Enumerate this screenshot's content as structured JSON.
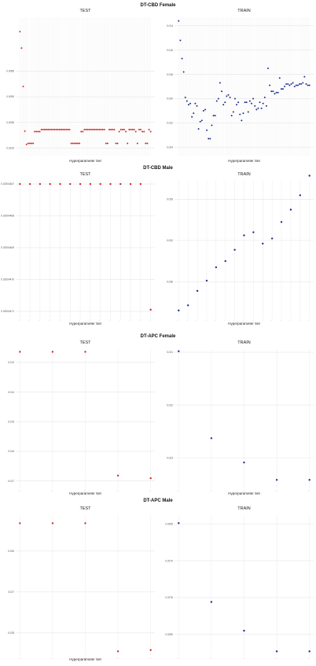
{
  "figure": {
    "sections": [
      {
        "title": "DT-CBD Female",
        "panels": [
          {
            "subtitle": "TEST",
            "xlabel": "Hyperparameter Set",
            "color": "#d62728",
            "yticks": [
              "0.0100",
              "0.0095",
              "0.0090",
              "0.0085"
            ],
            "chart_data": {
              "type": "scatter",
              "ylim": [
                0.00835,
                0.01105
              ],
              "grid": true,
              "yticks": [
                0.0085,
                0.009,
                0.0095,
                0.01
              ],
              "x": [
                1,
                2,
                3,
                4,
                5,
                6,
                7,
                8,
                9,
                10,
                11,
                12,
                13,
                14,
                15,
                16,
                17,
                18,
                19,
                20,
                21,
                22,
                23,
                24,
                25,
                26,
                27,
                28,
                29,
                30,
                31,
                32,
                33,
                34,
                35,
                36,
                37,
                38,
                39,
                40,
                41,
                42,
                43,
                44,
                45,
                46,
                47,
                48,
                49,
                50,
                51,
                52,
                53,
                54,
                55,
                56,
                57,
                58,
                59,
                60,
                61,
                62,
                63,
                64,
                65,
                66,
                67,
                68,
                69,
                70,
                71,
                72,
                73,
                74,
                75,
                76,
                77,
                78,
                79,
                80
              ],
              "y": [
                0.01077,
                0.01045,
                0.0097,
                0.00883,
                0.00857,
                0.00859,
                0.00859,
                0.00859,
                0.00859,
                0.00882,
                0.00882,
                0.00882,
                0.00882,
                0.00886,
                0.00886,
                0.00886,
                0.00886,
                0.00886,
                0.00886,
                0.00886,
                0.00886,
                0.00886,
                0.00886,
                0.00886,
                0.00886,
                0.00886,
                0.00886,
                0.00886,
                0.00886,
                0.00886,
                0.00886,
                0.00859,
                0.00859,
                0.00859,
                0.00859,
                0.00859,
                0.00859,
                0.00882,
                0.00882,
                0.00886,
                0.00886,
                0.00886,
                0.00886,
                0.00886,
                0.00886,
                0.00886,
                0.00886,
                0.00886,
                0.00886,
                0.00886,
                0.00886,
                0.00886,
                0.00859,
                0.00859,
                0.00886,
                0.00886,
                0.00886,
                0.00886,
                0.00859,
                0.00859,
                0.00882,
                0.00886,
                0.00886,
                0.00886,
                0.00882,
                0.00859,
                0.00886,
                0.00886,
                0.00886,
                0.00886,
                0.00882,
                0.00859,
                0.00886,
                0.00886,
                0.00882,
                0.00882,
                0.00859,
                0.00859,
                0.00886,
                0.00882
              ]
            }
          },
          {
            "subtitle": "TRAIN",
            "xlabel": "Hyperparameter Set",
            "color": "#1f2f8f",
            "yticks": [
              "0.024",
              "0.022",
              "0.020",
              "0.018",
              "0.016",
              "0.014"
            ],
            "chart_data": {
              "type": "scatter",
              "ylim": [
                0.0133,
                0.0247
              ],
              "grid": true,
              "yticks": [
                0.014,
                0.016,
                0.018,
                0.02,
                0.022,
                0.024
              ],
              "x": [
                1,
                2,
                3,
                4,
                5,
                6,
                7,
                8,
                9,
                10,
                11,
                12,
                13,
                14,
                15,
                16,
                17,
                18,
                19,
                20,
                21,
                22,
                23,
                24,
                25,
                26,
                27,
                28,
                29,
                30,
                31,
                32,
                33,
                34,
                35,
                36,
                37,
                38,
                39,
                40,
                41,
                42,
                43,
                44,
                45,
                46,
                47,
                48,
                49,
                50,
                51,
                52,
                53,
                54,
                55,
                56,
                57,
                58,
                59,
                60,
                61,
                62,
                63,
                64,
                65,
                66,
                67,
                68,
                69,
                70,
                71,
                72,
                73,
                74,
                75,
                76,
                77,
                78,
                79,
                80
              ],
              "y": [
                0.0244,
                0.0228,
                0.0213,
                0.0202,
                0.0181,
                0.0178,
                0.0175,
                0.0176,
                0.0165,
                0.0168,
                0.0176,
                0.0174,
                0.0155,
                0.0161,
                0.0162,
                0.017,
                0.0171,
                0.0154,
                0.0147,
                0.0147,
                0.0158,
                0.0166,
                0.0166,
                0.0178,
                0.018,
                0.0193,
                0.0186,
                0.0175,
                0.0177,
                0.0182,
                0.0183,
                0.0181,
                0.0166,
                0.0169,
                0.018,
                0.0175,
                0.0177,
                0.0167,
                0.0162,
                0.0168,
                0.0177,
                0.0177,
                0.0169,
                0.0178,
                0.0176,
                0.018,
                0.0174,
                0.0171,
                0.0172,
                0.0177,
                0.0172,
                0.0176,
                0.0181,
                0.0174,
                0.0205,
                0.0191,
                0.0186,
                0.0186,
                0.0184,
                0.0185,
                0.0185,
                0.0197,
                0.0188,
                0.0188,
                0.019,
                0.0192,
                0.0192,
                0.0191,
                0.0192,
                0.0193,
                0.019,
                0.0191,
                0.0191,
                0.0192,
                0.0192,
                0.0193,
                0.0198,
                0.0192,
                0.0191,
                0.0191
              ]
            }
          }
        ]
      },
      {
        "title": "DT-CBD Male",
        "panels": [
          {
            "subtitle": "TEST",
            "xlabel": "Hyperparameter Set",
            "color": "#d62728",
            "yticks": [
              "0.02004471",
              "0.02004470",
              "0.02004469",
              "0.02004468",
              "0.02004467"
            ],
            "chart_data": {
              "type": "scatter",
              "ylim": [
                0.020044668,
                0.020044711
              ],
              "grid": true,
              "yticks": [
                0.02004467,
                0.02004468,
                0.02004469,
                0.0200447,
                0.02004471
              ],
              "x": [
                1,
                2,
                3,
                4,
                5,
                6,
                7,
                8,
                9,
                10,
                11,
                12,
                13,
                14
              ],
              "y": [
                0.02004471,
                0.02004471,
                0.02004471,
                0.02004471,
                0.02004471,
                0.02004471,
                0.02004471,
                0.02004471,
                0.02004471,
                0.02004471,
                0.02004471,
                0.02004471,
                0.02004471,
                0.0200446705
              ]
            }
          },
          {
            "subtitle": "TRAIN",
            "xlabel": "Hyperparameter Set",
            "color": "#1f2f8f",
            "yticks": [
              "0.036",
              "0.032",
              "0.028"
            ],
            "chart_data": {
              "type": "scatter",
              "ylim": [
                0.0245,
                0.0378
              ],
              "grid": true,
              "yticks": [
                0.028,
                0.032,
                0.036
              ],
              "x": [
                1,
                2,
                3,
                4,
                5,
                6,
                7,
                8,
                9,
                10,
                11,
                12,
                13,
                14,
                15
              ],
              "y": [
                0.0252,
                0.0257,
                0.0271,
                0.0281,
                0.0294,
                0.03,
                0.0311,
                0.0325,
                0.0328,
                0.0317,
                0.0322,
                0.0338,
                0.035,
                0.0364,
                0.0383
              ]
            }
          }
        ]
      },
      {
        "title": "DT-APC Female",
        "panels": [
          {
            "subtitle": "TEST",
            "xlabel": "Hyperparameter Set",
            "color": "#d62728",
            "yticks": [
              "0.017",
              "0.016",
              "0.015",
              "0.014",
              "0.013"
            ],
            "chart_data": {
              "type": "scatter",
              "ylim": [
                0.01275,
                0.01745
              ],
              "grid": true,
              "yticks": [
                0.013,
                0.014,
                0.015,
                0.016,
                0.017
              ],
              "x": [
                1,
                2,
                3,
                4,
                5
              ],
              "y": [
                0.01736,
                0.01736,
                0.01736,
                0.01318,
                0.01309
              ]
            }
          },
          {
            "subtitle": "TRAIN",
            "xlabel": "Hyperparameter Set",
            "color": "#1f2f8f",
            "yticks": [
              "0.023",
              "0.022",
              "0.021"
            ],
            "chart_data": {
              "type": "scatter",
              "ylim": [
                0.02042,
                0.02306
              ],
              "grid": true,
              "yticks": [
                0.021,
                0.022,
                0.023
              ],
              "x": [
                1,
                2,
                3,
                4,
                5
              ],
              "y": [
                0.02302,
                0.02137,
                0.02091,
                0.02058,
                0.02058
              ]
            }
          }
        ]
      },
      {
        "title": "DT-APC Male",
        "panels": [
          {
            "subtitle": "TEST",
            "xlabel": "Hyperparameter Set",
            "color": "#d62728",
            "yticks": [
              "0.028",
              "0.027",
              "0.026"
            ],
            "chart_data": {
              "type": "scatter",
              "ylim": [
                0.02544,
                0.02888
              ],
              "grid": true,
              "yticks": [
                0.026,
                0.027,
                0.028
              ],
              "x": [
                1,
                2,
                3,
                4,
                5
              ],
              "y": [
                0.02868,
                0.02868,
                0.02868,
                0.02555,
                0.02558
              ]
            }
          },
          {
            "subtitle": "TRAIN",
            "xlabel": "",
            "color": "#1f2f8f",
            "yticks": [
              "0.0280",
              "0.0275",
              "0.0270",
              "0.0265"
            ],
            "chart_data": {
              "type": "scatter",
              "ylim": [
                0.02621,
                0.02812
              ],
              "grid": true,
              "yticks": [
                0.0265,
                0.027,
                0.0275,
                0.028
              ],
              "x": [
                1,
                2,
                3,
                4,
                5
              ],
              "y": [
                0.02801,
                0.02694,
                0.02655,
                0.02627,
                0.02627
              ]
            }
          }
        ]
      }
    ]
  }
}
